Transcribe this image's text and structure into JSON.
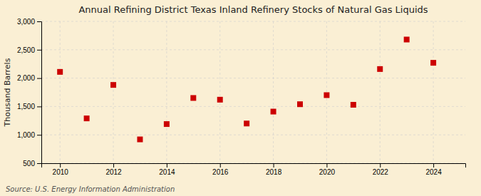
{
  "chart_data": {
    "type": "scatter",
    "title": "Annual Refining District Texas Inland Refinery Stocks of Natural Gas Liquids",
    "ylabel": "Thousand Barrels",
    "annotations": [
      "Source: U.S. Energy Information Administration"
    ],
    "x": [
      2010,
      2011,
      2012,
      2013,
      2014,
      2015,
      2016,
      2017,
      2018,
      2019,
      2020,
      2021,
      2022,
      2023,
      2024
    ],
    "values": [
      2110,
      1290,
      1880,
      920,
      1190,
      1650,
      1620,
      1200,
      1410,
      1540,
      1700,
      1530,
      2160,
      2680,
      2270
    ],
    "color": "#cc0000",
    "marker": "square",
    "xlim": [
      2009.3,
      2025.2
    ],
    "xticks": [
      2010,
      2012,
      2014,
      2016,
      2018,
      2020,
      2022,
      2024
    ],
    "ylim": [
      500,
      3000
    ],
    "yticks": [
      500,
      {
        "value": 1000,
        "label": "1,000"
      },
      {
        "value": 1500,
        "label": "1,500"
      },
      {
        "value": 2000,
        "label": "2,000"
      },
      {
        "value": 2500,
        "label": "2,500"
      },
      {
        "value": 3000,
        "label": "3,000"
      }
    ],
    "grid": true
  }
}
